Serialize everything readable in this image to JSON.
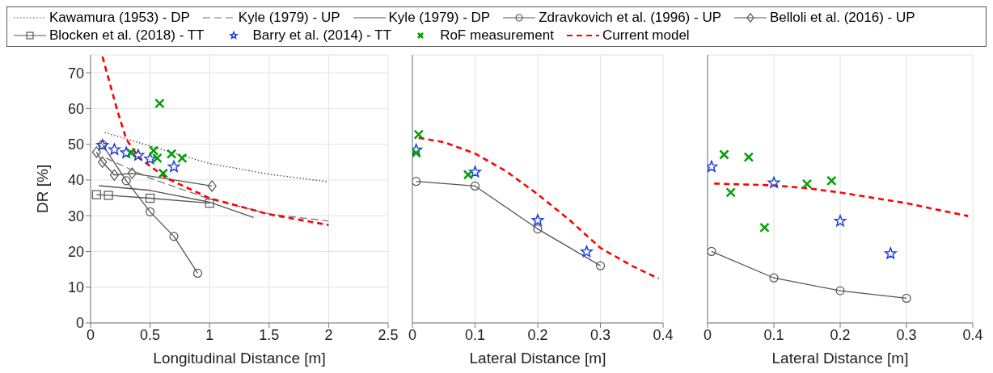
{
  "chart_data": [
    {
      "type": "line",
      "xlabel": "Longitudinal Distance [m]",
      "ylabel": "DR [%]",
      "xlim": [
        0,
        2.5
      ],
      "xticks": [
        0,
        0.5,
        1,
        1.5,
        2,
        2.5
      ],
      "ylim": [
        0,
        75
      ],
      "yticks": [
        0,
        10,
        20,
        30,
        40,
        50,
        60,
        70
      ],
      "grid": true,
      "legend": "top",
      "series": [
        {
          "name": "Kawamura (1953) - DP",
          "color": "#444444",
          "line_style": "dotted",
          "marker": "none",
          "x": [
            0.12,
            0.5,
            1.0,
            1.5,
            2.0
          ],
          "values": [
            53.3,
            49.5,
            44.6,
            41.6,
            39.5
          ]
        },
        {
          "name": "Kyle (1979) - UP",
          "color": "#777777",
          "line_style": "dashed",
          "marker": "none",
          "x": [
            0.13,
            0.5,
            1.0,
            1.5,
            2.0
          ],
          "values": [
            46.1,
            40.5,
            34.7,
            30.5,
            28.5
          ]
        },
        {
          "name": "Kyle (1979) - DP",
          "color": "#555555",
          "line_style": "solid",
          "marker": "none",
          "x": [
            0.07,
            0.5,
            1.0,
            1.37
          ],
          "values": [
            38.4,
            37.1,
            33.8,
            29.5
          ]
        },
        {
          "name": "Zdravkovich et al. (1996) - UP",
          "color": "#555555",
          "line_style": "solid",
          "marker": "circle",
          "x": [
            0.1,
            0.3,
            0.5,
            0.7,
            0.9
          ],
          "values": [
            49.9,
            39.8,
            31.1,
            24.2,
            13.9
          ]
        },
        {
          "name": "Belloli et al. (2016) - UP",
          "color": "#555555",
          "line_style": "solid",
          "marker": "diamond",
          "x": [
            0.05,
            0.1,
            0.2,
            0.35,
            1.02
          ],
          "values": [
            47.8,
            45.0,
            41.4,
            41.9,
            38.3
          ]
        },
        {
          "name": "Blocken et al. (2018) - TT",
          "color": "#555555",
          "line_style": "solid",
          "marker": "square",
          "x": [
            0.05,
            0.15,
            0.5,
            1.0
          ],
          "values": [
            35.9,
            35.7,
            34.9,
            33.5
          ]
        },
        {
          "name": "Barry et al. (2014) - TT",
          "type": "scatter",
          "color": "#1a3fe0",
          "marker": "star",
          "x": [
            0.1,
            0.2,
            0.3,
            0.4,
            0.5,
            0.7
          ],
          "values": [
            49.7,
            48.5,
            47.6,
            46.9,
            45.9,
            43.7
          ]
        },
        {
          "name": "RoF measurement",
          "type": "scatter",
          "color": "#00a000",
          "marker": "cross",
          "x": [
            0.58,
            0.34,
            0.53,
            0.56,
            0.68,
            0.77,
            0.61
          ],
          "values": [
            61.4,
            47.6,
            48.2,
            46.1,
            47.3,
            46.1,
            41.9
          ]
        },
        {
          "name": "Current model",
          "color": "#ff0000",
          "line_style": "dashed",
          "marker": "none",
          "x": [
            0.1,
            0.22,
            0.3,
            0.41,
            0.5,
            0.64,
            1.0,
            1.5,
            2.0
          ],
          "values": [
            74.5,
            60,
            51.4,
            46.1,
            43.9,
            40.5,
            34.9,
            30.4,
            27.4
          ]
        }
      ]
    },
    {
      "type": "line",
      "xlabel": "Lateral Distance [m]",
      "xlim": [
        0,
        0.4
      ],
      "xticks": [
        0,
        0.1,
        0.2,
        0.3,
        0.4
      ],
      "ylim": [
        0,
        75
      ],
      "yticks": [
        0,
        10,
        20,
        30,
        40,
        50,
        60,
        70
      ],
      "grid": true,
      "tick_labels": "x",
      "series": [
        {
          "color": "#555555",
          "line_style": "solid",
          "marker": "circle",
          "x": [
            0.006,
            0.1,
            0.2,
            0.3
          ],
          "values": [
            39.6,
            38.3,
            26.3,
            16.0
          ]
        },
        {
          "type": "scatter",
          "color": "#1a3fe0",
          "marker": "star",
          "x": [
            0.006,
            0.1,
            0.2,
            0.278
          ],
          "values": [
            48.4,
            42.2,
            28.7,
            19.9
          ]
        },
        {
          "type": "scatter",
          "color": "#00a000",
          "marker": "cross",
          "x": [
            0.01,
            0.006,
            0.089
          ],
          "values": [
            52.7,
            47.6,
            41.5
          ]
        },
        {
          "color": "#ff0000",
          "line_style": "dashed",
          "marker": "none",
          "x": [
            0.01,
            0.05,
            0.1,
            0.15,
            0.2,
            0.25,
            0.3,
            0.35,
            0.393
          ],
          "values": [
            51.8,
            50.6,
            47.4,
            42.4,
            36.0,
            28.9,
            21.0,
            16.0,
            12.4
          ]
        }
      ]
    },
    {
      "type": "line",
      "xlabel": "Lateral Distance [m]",
      "xlim": [
        0,
        0.4
      ],
      "xticks": [
        0,
        0.1,
        0.2,
        0.3,
        0.4
      ],
      "ylim": [
        0,
        75
      ],
      "yticks": [
        0,
        10,
        20,
        30,
        40,
        50,
        60,
        70
      ],
      "grid": true,
      "tick_labels": "x",
      "series": [
        {
          "color": "#555555",
          "line_style": "solid",
          "marker": "circle",
          "x": [
            0.006,
            0.1,
            0.2,
            0.3
          ],
          "values": [
            20.0,
            12.6,
            9.0,
            6.9
          ]
        },
        {
          "type": "scatter",
          "color": "#1a3fe0",
          "marker": "star",
          "x": [
            0.006,
            0.1,
            0.2,
            0.276
          ],
          "values": [
            43.7,
            39.2,
            28.5,
            19.4
          ]
        },
        {
          "type": "scatter",
          "color": "#00a000",
          "marker": "cross",
          "x": [
            0.025,
            0.035,
            0.062,
            0.086,
            0.15,
            0.187
          ],
          "values": [
            47.1,
            36.5,
            46.4,
            26.7,
            38.9,
            39.8
          ]
        },
        {
          "color": "#ff0000",
          "line_style": "dashed",
          "marker": "none",
          "x": [
            0.01,
            0.1,
            0.15,
            0.2,
            0.3,
            0.393
          ],
          "values": [
            39.0,
            38.5,
            37.7,
            36.5,
            33.5,
            29.9
          ]
        }
      ]
    }
  ]
}
